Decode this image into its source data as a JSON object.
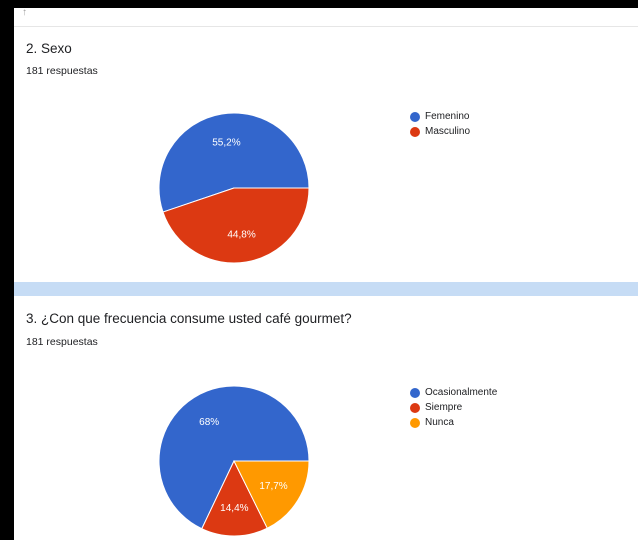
{
  "questions": [
    {
      "title": "2. Sexo",
      "responses": "181 respuestas",
      "chart_data": {
        "type": "pie",
        "title": "2. Sexo",
        "categories": [
          "Femenino",
          "Masculino"
        ],
        "values": [
          55.2,
          44.8
        ],
        "labels": [
          "55,2%",
          "44,8%"
        ],
        "colors": [
          "#3366cc",
          "#dc3912"
        ],
        "legend": "right"
      }
    },
    {
      "title": "3. ¿Con que frecuencia consume usted café gourmet?",
      "responses": "181 respuestas",
      "chart_data": {
        "type": "pie",
        "title": "3. ¿Con que frecuencia consume usted café gourmet?",
        "categories": [
          "Ocasionalmente",
          "Siempre",
          "Nunca"
        ],
        "values": [
          68,
          14.4,
          17.7
        ],
        "labels": [
          "68%",
          "14,4%",
          "17,7%"
        ],
        "colors": [
          "#3366cc",
          "#dc3912",
          "#ff9900"
        ],
        "legend": "right"
      }
    }
  ]
}
